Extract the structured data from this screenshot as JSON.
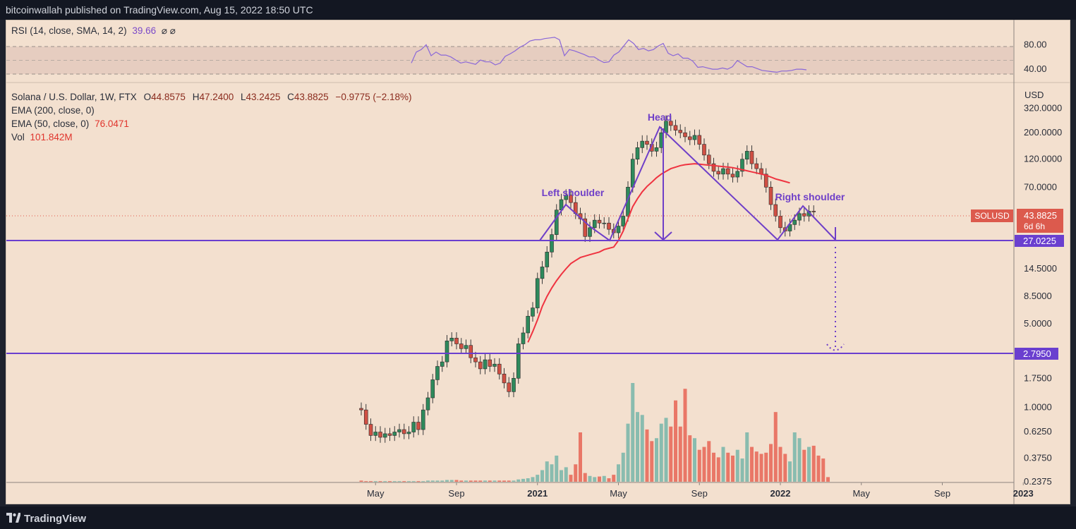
{
  "header": {
    "published": "bitcoinwallah published on TradingView.com, Aug 15, 2022 18:50 UTC"
  },
  "footer": {
    "brand": "TradingView"
  },
  "rsi": {
    "label": "RSI (14, close, SMA, 14, 2)",
    "value": "39.66",
    "extra": "⌀ ⌀",
    "ticks": [
      "80.00",
      "40.00"
    ],
    "levels": [
      70,
      50,
      30
    ],
    "range": [
      24,
      100
    ],
    "x": [
      583,
      590,
      597,
      604,
      611,
      618,
      625,
      632,
      639,
      646,
      653,
      660,
      667,
      674,
      681,
      688,
      695,
      702,
      709,
      716,
      723,
      730,
      737,
      744,
      751,
      758,
      765,
      772,
      779,
      786,
      793,
      800,
      807,
      814,
      821,
      828,
      835,
      842,
      849,
      856,
      863,
      870,
      877,
      884,
      891,
      898,
      905,
      912,
      919,
      926,
      933,
      940,
      947,
      954,
      961,
      968,
      975,
      982,
      989,
      996,
      1003,
      1010,
      1017,
      1024,
      1031,
      1038,
      1045,
      1052,
      1059,
      1066,
      1073,
      1080,
      1087,
      1094,
      1101,
      1108,
      1115,
      1122,
      1129,
      1136,
      1143
    ],
    "values": [
      50,
      68,
      72,
      80,
      62,
      68,
      63,
      63,
      60,
      55,
      50,
      52,
      50,
      48,
      55,
      52,
      52,
      47,
      50,
      61,
      65,
      70,
      76,
      80,
      86,
      88,
      88,
      90,
      91,
      92,
      88,
      62,
      72,
      70,
      67,
      64,
      60,
      60,
      55,
      51,
      52,
      63,
      68,
      78,
      88,
      82,
      72,
      74,
      70,
      72,
      78,
      82,
      66,
      62,
      65,
      58,
      58,
      53,
      43,
      44,
      42,
      40,
      40,
      42,
      40,
      44,
      54,
      49,
      44,
      44,
      41,
      38,
      37,
      36,
      35,
      37,
      37,
      38,
      40,
      40,
      39
    ]
  },
  "main": {
    "symbol_line": "Solana / U.S. Dollar, 1W, FTX",
    "ohlc": {
      "o_label": "O",
      "o": "44.8575",
      "h_label": "H",
      "h": "47.2400",
      "l_label": "L",
      "l": "43.2425",
      "c_label": "C",
      "c": "43.8825",
      "chg": "−0.9775 (−2.18%)"
    },
    "ema200": "EMA (200, close, 0)",
    "ema50_label": "EMA (50, close, 0)",
    "ema50_value": "76.0471",
    "vol_label": "Vol",
    "vol_value": "101.842M",
    "currency": "USD"
  },
  "chart_data": {
    "type": "candlestick",
    "symbol": "SOLUSD",
    "interval": "1W",
    "yscale": "log",
    "ylim": [
      0.2375,
      520
    ],
    "y_ticks": [
      "320.0000",
      "200.0000",
      "120.0000",
      "70.0000",
      "14.5000",
      "8.5000",
      "5.0000",
      "1.7500",
      "1.0000",
      "0.6250",
      "0.3750",
      "0.2375"
    ],
    "x_ticks": [
      "May",
      "Sep",
      "2021",
      "May",
      "Sep",
      "2022",
      "May",
      "Sep",
      "2023",
      "May",
      "Sep"
    ],
    "x_tick_weeks": [
      3,
      20,
      37,
      54,
      71,
      88,
      105,
      122,
      139,
      156,
      173
    ],
    "x_tick_bold": [
      false,
      false,
      true,
      false,
      false,
      true,
      false,
      false,
      true,
      false,
      false
    ],
    "last_price": {
      "label": "SOLUSD",
      "value": "43.8825",
      "countdown": "6d 6h"
    },
    "levels": [
      {
        "value": 27.0225,
        "label": "27.0225"
      },
      {
        "value": 2.795,
        "label": "2.7950"
      }
    ],
    "closes": [
      0.95,
      0.72,
      0.58,
      0.62,
      0.56,
      0.6,
      0.58,
      0.62,
      0.65,
      0.6,
      0.62,
      0.75,
      0.65,
      0.95,
      1.2,
      1.7,
      2.2,
      2.4,
      3.6,
      3.8,
      3.4,
      3.1,
      3.3,
      2.6,
      2.4,
      2.1,
      2.5,
      2.2,
      2.3,
      1.9,
      1.6,
      1.35,
      1.75,
      3.4,
      4.2,
      5.8,
      6.8,
      12,
      15,
      20,
      28,
      45,
      55,
      60,
      52,
      42,
      38,
      27,
      32,
      37,
      35,
      35,
      31,
      29,
      33,
      40,
      70,
      120,
      150,
      170,
      160,
      140,
      150,
      200,
      250,
      230,
      210,
      200,
      185,
      175,
      190,
      160,
      130,
      110,
      95,
      90,
      100,
      90,
      85,
      95,
      120,
      140,
      110,
      100,
      90,
      70,
      50,
      40,
      32,
      30,
      34,
      37,
      42,
      40,
      44,
      43.88
    ],
    "ema50": [
      null,
      null,
      null,
      null,
      null,
      null,
      null,
      null,
      null,
      null,
      null,
      null,
      null,
      null,
      null,
      null,
      null,
      null,
      null,
      null,
      null,
      null,
      null,
      null,
      null,
      null,
      null,
      null,
      null,
      null,
      null,
      null,
      null,
      null,
      null,
      3.5,
      4.3,
      5.4,
      7,
      8.5,
      10,
      11.5,
      13,
      14.5,
      16,
      17,
      18,
      18.5,
      19,
      19.5,
      20,
      21,
      21.5,
      22,
      25,
      30,
      38,
      48,
      56,
      64,
      71,
      77,
      84,
      90,
      95,
      100,
      103,
      106,
      108,
      109,
      110,
      109,
      108,
      107,
      106,
      105,
      104,
      103,
      102,
      100,
      98,
      96,
      94,
      92,
      90,
      88,
      85,
      82,
      80,
      78,
      76
    ],
    "volume": [
      2,
      1,
      1,
      1,
      1,
      1,
      1,
      1,
      1,
      1,
      1,
      1,
      1,
      1,
      2,
      2,
      2,
      2,
      3,
      3,
      3,
      2,
      2,
      2,
      2,
      2,
      2,
      2,
      2,
      2,
      2,
      2,
      2,
      4,
      5,
      6,
      8,
      12,
      20,
      35,
      30,
      45,
      20,
      25,
      12,
      30,
      85,
      15,
      10,
      8,
      9,
      10,
      6,
      12,
      30,
      50,
      100,
      170,
      120,
      115,
      90,
      70,
      75,
      100,
      110,
      95,
      140,
      95,
      160,
      80,
      75,
      55,
      60,
      70,
      50,
      42,
      60,
      50,
      45,
      55,
      40,
      85,
      60,
      52,
      48,
      50,
      65,
      120,
      60,
      48,
      35,
      85,
      75,
      55,
      60,
      62,
      45,
      40,
      8
    ]
  },
  "annotations": {
    "head": "Head",
    "left_shoulder": "Left shoulder",
    "right_shoulder": "Right shoulder"
  },
  "colors": {
    "up": "#76b5a9",
    "down": "#e66455",
    "up_body": "#2e8a5c",
    "down_body": "#d04f43",
    "ema50": "#ef3340",
    "pattern": "#6f3fc8",
    "background": "#f3e0cf"
  }
}
